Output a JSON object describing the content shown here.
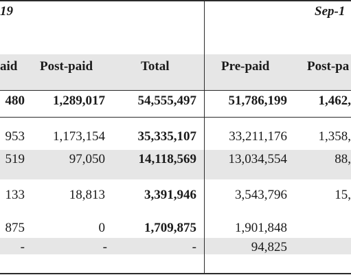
{
  "periods": [
    "19",
    "Sep-1"
  ],
  "headers": [
    "aid",
    "Post-paid",
    "Total",
    "Pre-paid",
    "Post-pa"
  ],
  "rows": [
    {
      "cells": [
        "480",
        "1,289,017",
        "54,555,497",
        "51,786,199",
        "1,462,"
      ],
      "bold": [
        true,
        true,
        true,
        true,
        true
      ]
    },
    {
      "cells": [
        "953",
        "1,173,154",
        "35,335,107",
        "33,211,176",
        "1,358,"
      ],
      "bold": [
        false,
        false,
        true,
        false,
        false
      ]
    },
    {
      "cells": [
        "519",
        "97,050",
        "14,118,569",
        "13,034,554",
        "88,"
      ],
      "bold": [
        false,
        false,
        true,
        false,
        false
      ]
    },
    {
      "cells": [
        "133",
        "18,813",
        "3,391,946",
        "3,543,796",
        "15,"
      ],
      "bold": [
        false,
        false,
        true,
        false,
        false
      ]
    },
    {
      "cells": [
        "875",
        "0",
        "1,709,875",
        "1,901,848",
        ""
      ],
      "bold": [
        false,
        false,
        true,
        false,
        false
      ]
    },
    {
      "cells": [
        "-",
        "-",
        "-",
        "94,825",
        ""
      ],
      "bold": [
        false,
        false,
        false,
        false,
        false
      ]
    }
  ]
}
